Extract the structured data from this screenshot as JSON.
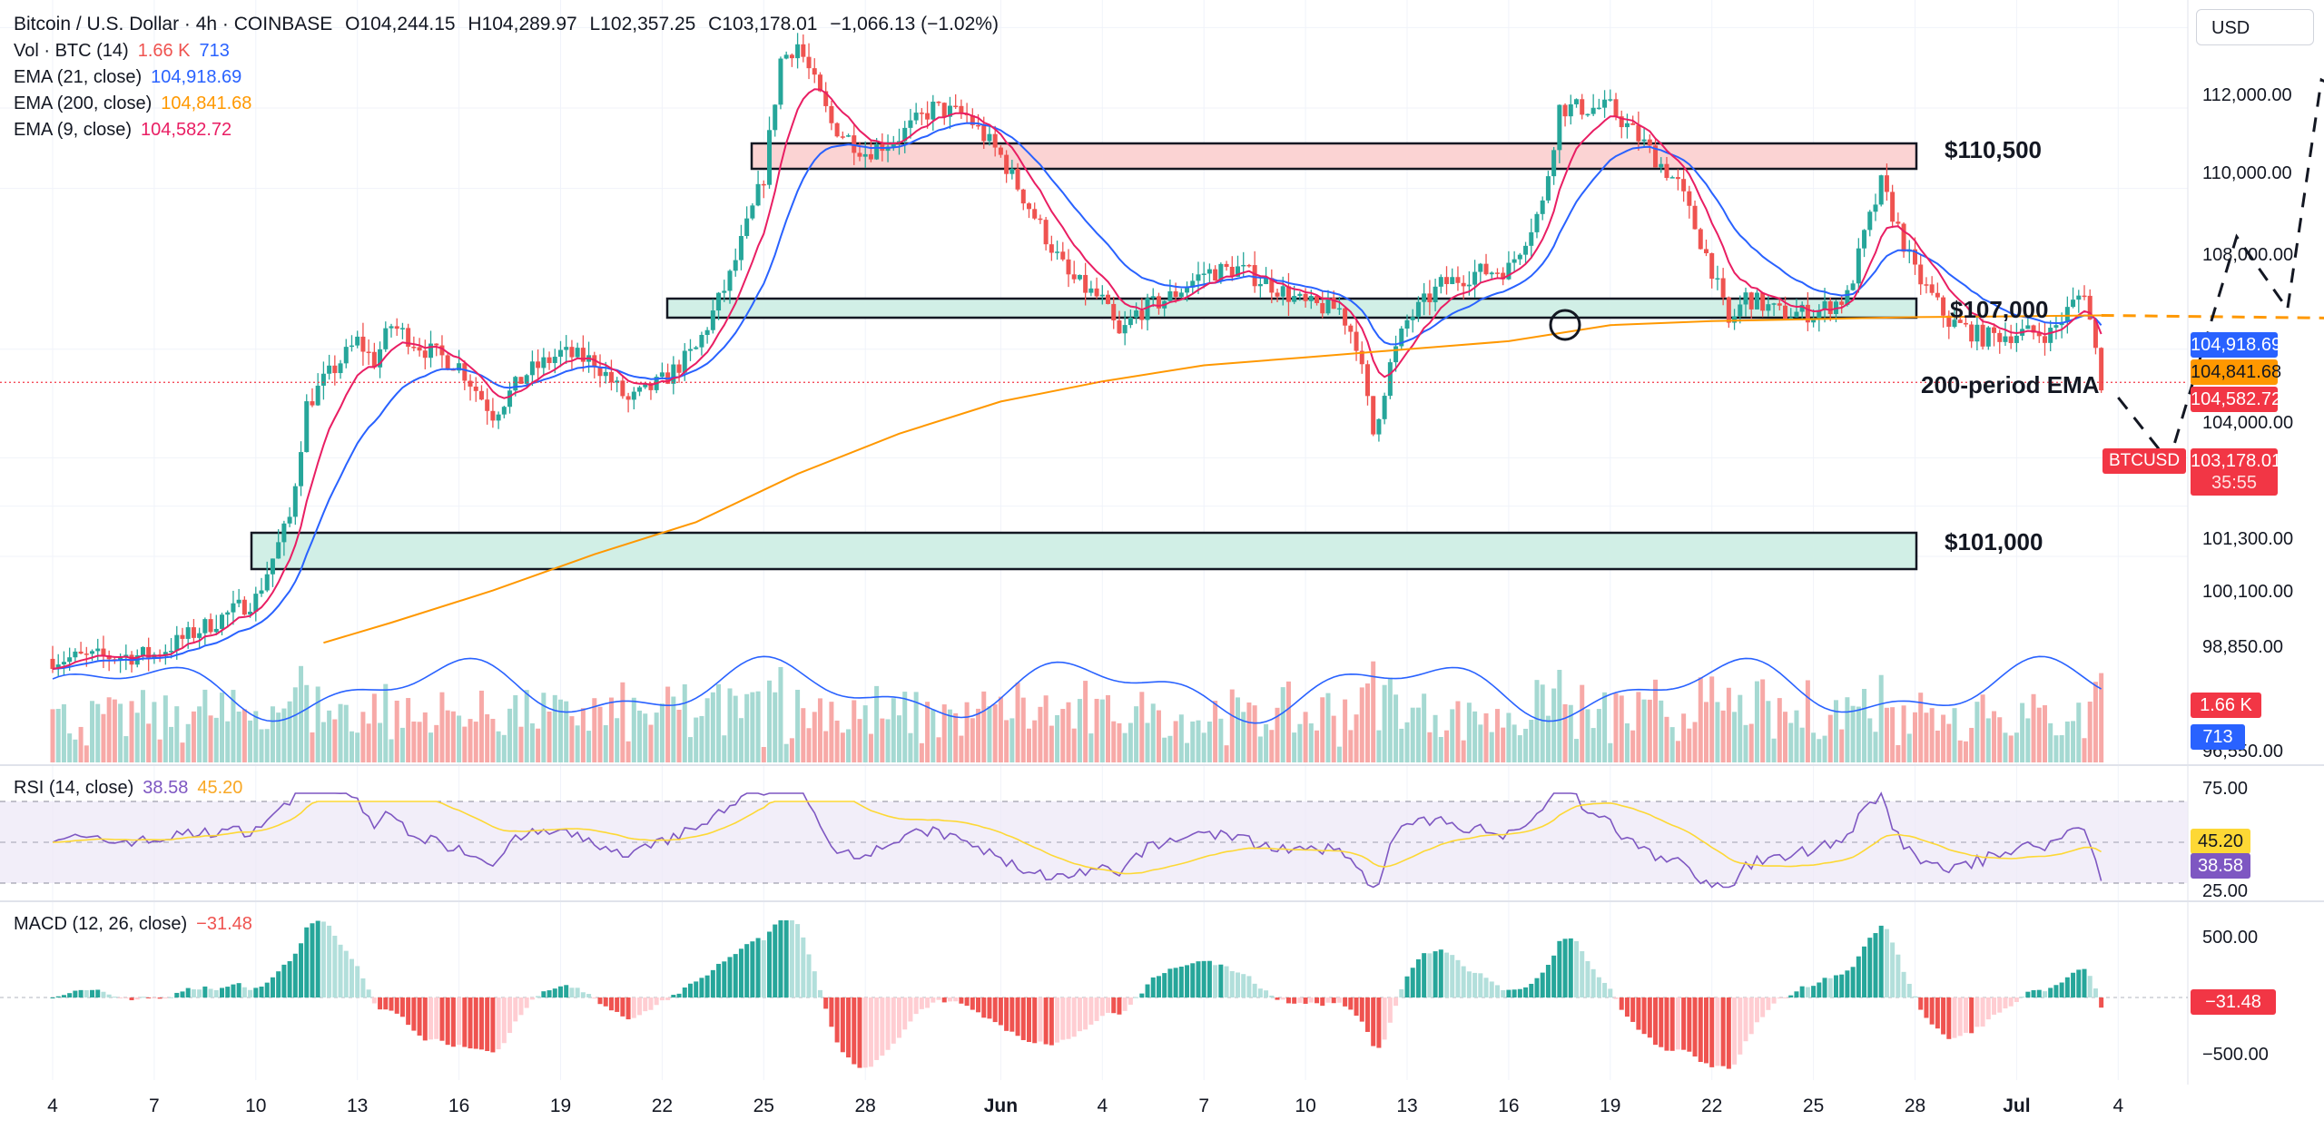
{
  "header": {
    "title": "Bitcoin / U.S. Dollar · 4h · COINBASE",
    "open": "O104,244.15",
    "high": "H104,289.97",
    "low": "L102,357.25",
    "close": "C103,178.01",
    "change": "−1,066.13 (−1.02%)",
    "currency": "USD"
  },
  "legends": {
    "vol": {
      "label": "Vol · BTC (14)",
      "v1": "1.66 K",
      "v2": "713"
    },
    "ema21": {
      "label": "EMA (21, close)",
      "value": "104,918.69"
    },
    "ema200": {
      "label": "EMA (200, close)",
      "value": "104,841.68"
    },
    "ema9": {
      "label": "EMA (9, close)",
      "value": "104,582.72"
    },
    "rsi": {
      "label": "RSI (14, close)",
      "v1": "38.58",
      "v2": "45.20"
    },
    "macd": {
      "label": "MACD (12, 26, close)",
      "value": "−31.48"
    }
  },
  "annotations": {
    "res": "$110,500",
    "mid": "$107,000",
    "ema": "200-period EMA",
    "sup": "$101,000"
  },
  "price_axis": {
    "labels": [
      "112,000.00",
      "110,000.00",
      "108,000.00",
      "104,000.00",
      "101,300.00",
      "100,100.00",
      "98,850.00",
      "96,550.00"
    ],
    "tags": {
      "ema21": "104,918.69",
      "ema200": "104,841.68",
      "ema9": "104,582.72",
      "symbol": "BTCUSD",
      "last": "103,178.01",
      "countdown": "35:55",
      "vol1": "1.66 K",
      "vol2": "713"
    }
  },
  "rsi_axis": {
    "labels": [
      "75.00",
      "25.00"
    ],
    "tag1": "45.20",
    "tag2": "38.58"
  },
  "macd_axis": {
    "labels": [
      "500.00",
      "−500.00"
    ],
    "tag": "−31.48"
  },
  "time_axis": [
    "4",
    "7",
    "10",
    "13",
    "16",
    "19",
    "22",
    "25",
    "28",
    "Jun",
    "4",
    "7",
    "10",
    "13",
    "16",
    "19",
    "22",
    "25",
    "28",
    "Jul",
    "4"
  ],
  "colors": {
    "up": "#26a69a",
    "down": "#ef5350",
    "ema21": "#2962ff",
    "ema200": "#ff9800",
    "ema9": "#e91e63",
    "rsi": "#7e57c2",
    "rsi_ma": "#fdd835",
    "zone_green": "#d1efe6",
    "zone_red": "#fbd3d3"
  },
  "chart_data": {
    "type": "candlestick",
    "interval": "4h",
    "symbol": "BTCUSD",
    "last_close": 103178.01,
    "key_levels": [
      110500,
      107000,
      101000
    ],
    "candle_path": [
      [
        0,
        96300
      ],
      [
        3,
        96400
      ],
      [
        6,
        97800
      ],
      [
        7,
        99800
      ],
      [
        7.5,
        102600
      ],
      [
        8,
        103200
      ],
      [
        9,
        104200
      ],
      [
        9.5,
        103700
      ],
      [
        10,
        104600
      ],
      [
        11,
        104000
      ],
      [
        12,
        103600
      ],
      [
        13,
        102400
      ],
      [
        14,
        103400
      ],
      [
        15,
        103900
      ],
      [
        16,
        103700
      ],
      [
        17,
        102700
      ],
      [
        18,
        103200
      ],
      [
        19,
        104000
      ],
      [
        20,
        105800
      ],
      [
        21,
        108300
      ],
      [
        21.5,
        111200
      ],
      [
        22,
        111600
      ],
      [
        22.5,
        110600
      ],
      [
        23,
        109600
      ],
      [
        24,
        108900
      ],
      [
        25,
        109300
      ],
      [
        26,
        110000
      ],
      [
        27,
        109800
      ],
      [
        28,
        108800
      ],
      [
        29,
        107300
      ],
      [
        30,
        105800
      ],
      [
        31,
        105200
      ],
      [
        31.5,
        104300
      ],
      [
        32,
        104900
      ],
      [
        33,
        105300
      ],
      [
        34,
        105900
      ],
      [
        35,
        106000
      ],
      [
        36,
        105600
      ],
      [
        37,
        105100
      ],
      [
        38,
        105000
      ],
      [
        38.5,
        104200
      ],
      [
        39,
        101900
      ],
      [
        39.5,
        103600
      ],
      [
        40,
        104700
      ],
      [
        41,
        105600
      ],
      [
        42,
        105900
      ],
      [
        43,
        106000
      ],
      [
        44,
        107600
      ],
      [
        44.5,
        110000
      ],
      [
        45,
        110000
      ],
      [
        46,
        110000
      ],
      [
        47,
        109100
      ],
      [
        48,
        108100
      ],
      [
        49,
        106000
      ],
      [
        49.5,
        104600
      ],
      [
        50,
        105300
      ],
      [
        51,
        104900
      ],
      [
        52,
        104900
      ],
      [
        53,
        105300
      ],
      [
        53.5,
        106800
      ],
      [
        54,
        108100
      ],
      [
        54.5,
        107000
      ],
      [
        55,
        105900
      ],
      [
        56,
        104700
      ],
      [
        57,
        104300
      ],
      [
        58,
        104400
      ],
      [
        59,
        104400
      ],
      [
        60,
        105500
      ],
      [
        60.5,
        103178
      ]
    ],
    "ema200_path": [
      [
        8,
        96700
      ],
      [
        10,
        97200
      ],
      [
        13,
        98000
      ],
      [
        16,
        98900
      ],
      [
        19,
        99700
      ],
      [
        22,
        100900
      ],
      [
        25,
        101900
      ],
      [
        28,
        102700
      ],
      [
        31,
        103200
      ],
      [
        34,
        103600
      ],
      [
        37,
        103800
      ],
      [
        40,
        104000
      ],
      [
        43,
        104200
      ],
      [
        46,
        104600
      ],
      [
        49,
        104700
      ],
      [
        52,
        104750
      ],
      [
        55,
        104800
      ],
      [
        58,
        104820
      ],
      [
        60.5,
        104842
      ]
    ],
    "ema200_projection": [
      [
        60.5,
        104842
      ],
      [
        69,
        104850
      ]
    ],
    "scenario_path": [
      [
        61,
        102800
      ],
      [
        62.5,
        101200
      ],
      [
        64.5,
        106800
      ],
      [
        66,
        105000
      ],
      [
        67,
        110700
      ],
      [
        68,
        110300
      ]
    ],
    "rsi": {
      "value": 38.58,
      "ma": 45.2,
      "upper": 70,
      "lower": 30
    },
    "macd": {
      "histogram_last": -31.48,
      "range": [
        -500,
        500
      ]
    },
    "x_ticks": [
      "4",
      "7",
      "10",
      "13",
      "16",
      "19",
      "22",
      "25",
      "28",
      "Jun",
      "4",
      "7",
      "10",
      "13",
      "16",
      "19",
      "22",
      "25",
      "28",
      "Jul",
      "4"
    ]
  }
}
